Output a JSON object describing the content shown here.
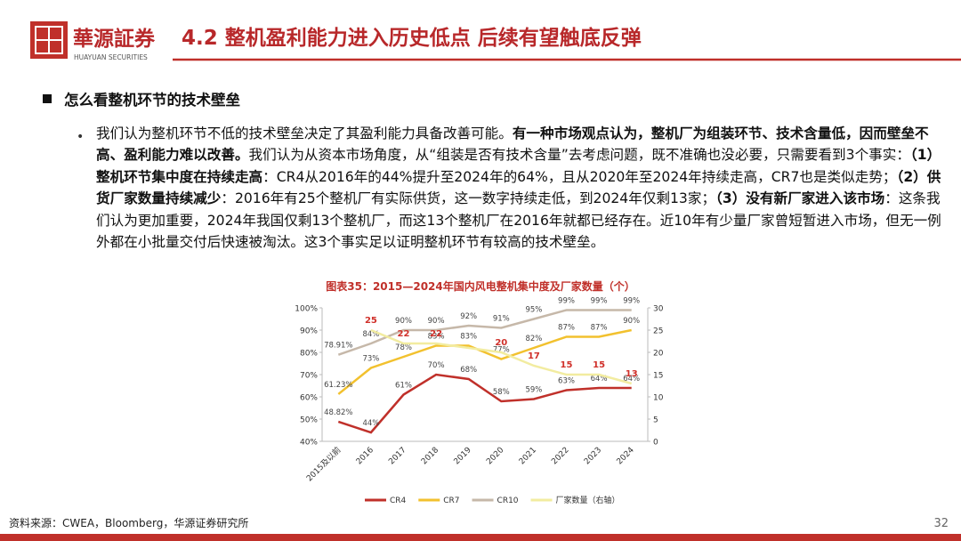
{
  "header": {
    "logo_name": "華源証券",
    "logo_en": "HUAYUAN SECURITIES",
    "title": "4.2 整机盈利能力进入历史低点 后续有望触底反弹"
  },
  "section": {
    "heading": "怎么看整机环节的技术壁垒",
    "bullet_symbol": "•",
    "runs": [
      {
        "text": "我们认为整机环节不低的技术壁垒决定了其盈利能力具备改善可能。",
        "bold": false
      },
      {
        "text": "有一种市场观点认为，整机厂为组装环节、技术含量低，因而壁垒不高、盈利能力难以改善。",
        "bold": true
      },
      {
        "text": "我们认为从资本市场角度，从“组装是否有技术含量”去考虑问题，既不准确也没必要，只需要看到3个事实：",
        "bold": false
      },
      {
        "text": "（1）整机环节集中度在持续走高",
        "bold": true
      },
      {
        "text": "：CR4从2016年的44%提升至2024年的64%，且从2020年至2024年持续走高，CR7也是类似走势；",
        "bold": false
      },
      {
        "text": "（2）供货厂家数量持续减少",
        "bold": true
      },
      {
        "text": "：2016年有25个整机厂有实际供货，这一数字持续走低，到2024年仅剩13家；",
        "bold": false
      },
      {
        "text": "（3）没有新厂家进入该市场",
        "bold": true
      },
      {
        "text": "：这条我们认为更加重要，2024年我国仅剩13个整机厂，而这13个整机厂在2016年就都已经存在。近10年有少量厂家曾短暂进入市场，但无一例外都在小批量交付后快速被淘汰。这3个事实足以证明整机环节有较高的技术壁垒。",
        "bold": false
      }
    ]
  },
  "chart_data": {
    "type": "line",
    "title": "图表35：2015—2024年国内风电整机集中度及厂家数量（个）",
    "categories": [
      "2015及以前",
      "2016",
      "2017",
      "2018",
      "2019",
      "2020",
      "2021",
      "2022",
      "2023",
      "2024"
    ],
    "ylim": [
      40,
      100
    ],
    "yticks": [
      {
        "value": 40,
        "label": "40%"
      },
      {
        "value": 50,
        "label": "50%"
      },
      {
        "value": 60,
        "label": "60%"
      },
      {
        "value": 70,
        "label": "70%"
      },
      {
        "value": 80,
        "label": "80%"
      },
      {
        "value": 90,
        "label": "90%"
      },
      {
        "value": 100,
        "label": "100%"
      }
    ],
    "y2lim": [
      0,
      30
    ],
    "y2ticks": [
      0,
      5,
      10,
      15,
      20,
      25,
      30
    ],
    "series": [
      {
        "name": "CR4",
        "color": "#c0302a",
        "values": [
          48.82,
          44,
          61,
          70,
          68,
          58,
          59,
          63,
          64,
          64
        ],
        "value_labels": [
          "48.82%",
          "44%",
          "61%",
          "70%",
          "68%",
          "58%",
          "59%",
          "63%",
          "64%",
          "64%"
        ]
      },
      {
        "name": "CR7",
        "color": "#f2c12e",
        "values": [
          61.23,
          73,
          78,
          83,
          83,
          77,
          82,
          87,
          87,
          90
        ],
        "value_labels": [
          "61.23%",
          "73%",
          "78%",
          "83%",
          "83%",
          "77%",
          "82%",
          "87%",
          "87%",
          "90%"
        ]
      },
      {
        "name": "CR10",
        "color": "#c6b8a9",
        "values": [
          78.91,
          84,
          90,
          90,
          92,
          91,
          95,
          99,
          99,
          99
        ],
        "value_labels": [
          "78.91%",
          "84%",
          "90%",
          "90%",
          "92%",
          "91%",
          "95%",
          "99%",
          "99%",
          "99%"
        ]
      },
      {
        "name": "厂家数量（右轴）",
        "color": "#f2eca0",
        "axis": "y2",
        "label_color": "#d0302a",
        "values": [
          null,
          25,
          22,
          22,
          21,
          20,
          17,
          15,
          15,
          13
        ],
        "value_labels": [
          null,
          "25",
          "22",
          "22",
          null,
          "20",
          "17",
          "15",
          "15",
          "13"
        ]
      }
    ]
  },
  "footer": {
    "source": "资料来源：CWEA，Bloomberg，华源证券研究所",
    "page": "32"
  }
}
